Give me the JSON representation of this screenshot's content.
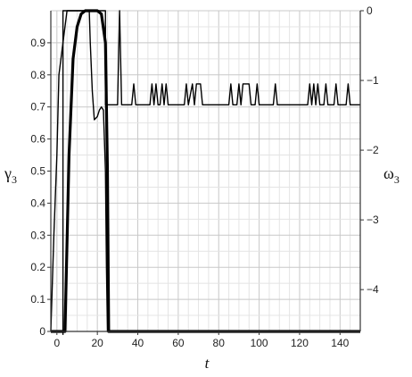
{
  "chart_data": {
    "type": "line",
    "xlabel": "t",
    "ylabel_left": {
      "symbol": "γ",
      "subscript": "3"
    },
    "ylabel_right": {
      "symbol": "ω",
      "subscript": "3"
    },
    "xlim": [
      -3,
      150
    ],
    "ylim_left": [
      0,
      1.0
    ],
    "ylim_right": [
      -4.6,
      0
    ],
    "x_ticks": [
      0,
      20,
      40,
      60,
      80,
      100,
      120,
      140
    ],
    "y_ticks_left": [
      0,
      0.1,
      0.2,
      0.3,
      0.4,
      0.5,
      0.6,
      0.7,
      0.8,
      0.9
    ],
    "y_ticks_right": [
      0,
      -1,
      -2,
      -3,
      -4
    ],
    "grid": true,
    "series": [
      {
        "axis": "left",
        "style": "thick",
        "points": [
          [
            -3,
            0
          ],
          [
            4,
            0
          ],
          [
            6,
            0.55
          ],
          [
            8,
            0.85
          ],
          [
            10,
            0.95
          ],
          [
            12,
            0.99
          ],
          [
            14,
            1.0
          ],
          [
            20,
            1.0
          ],
          [
            22,
            0.99
          ],
          [
            24,
            0.9
          ],
          [
            25,
            0.5
          ],
          [
            25.6,
            0.0
          ],
          [
            150,
            0.0
          ]
        ]
      },
      {
        "axis": "left",
        "style": "thin",
        "points": [
          [
            -3,
            0.0
          ],
          [
            -1.5,
            0.3
          ],
          [
            0,
            0.55
          ],
          [
            1,
            0.8
          ],
          [
            2,
            0.85
          ],
          [
            3,
            0.9
          ],
          [
            5,
            1.0
          ],
          [
            16,
            1.0
          ],
          [
            16.5,
            0.9
          ],
          [
            17.5,
            0.75
          ],
          [
            18.5,
            0.66
          ],
          [
            20,
            0.67
          ],
          [
            21,
            0.69
          ],
          [
            22,
            0.7
          ],
          [
            23,
            0.69
          ],
          [
            24,
            0.5
          ],
          [
            24.5,
            0.2
          ],
          [
            25,
            0.0
          ],
          [
            150,
            0.0
          ]
        ]
      },
      {
        "axis": "right",
        "style": "thin",
        "points": [
          [
            3,
            -4.65
          ],
          [
            3,
            0.0
          ],
          [
            24,
            0.0
          ],
          [
            24,
            -1.35
          ],
          [
            30,
            -1.35
          ],
          [
            31,
            0.0
          ],
          [
            32,
            -1.35
          ],
          [
            37,
            -1.35
          ],
          [
            38,
            -1.05
          ],
          [
            39,
            -1.35
          ],
          [
            46,
            -1.35
          ],
          [
            47,
            -1.05
          ],
          [
            48,
            -1.35
          ],
          [
            49,
            -1.05
          ],
          [
            50,
            -1.35
          ],
          [
            51,
            -1.35
          ],
          [
            52,
            -1.05
          ],
          [
            53,
            -1.35
          ],
          [
            54,
            -1.05
          ],
          [
            55,
            -1.35
          ],
          [
            63,
            -1.35
          ],
          [
            64,
            -1.05
          ],
          [
            65,
            -1.35
          ],
          [
            67,
            -1.05
          ],
          [
            68,
            -1.35
          ],
          [
            69,
            -1.05
          ],
          [
            71,
            -1.05
          ],
          [
            72,
            -1.35
          ],
          [
            85,
            -1.35
          ],
          [
            86,
            -1.05
          ],
          [
            87,
            -1.35
          ],
          [
            89,
            -1.35
          ],
          [
            90,
            -1.05
          ],
          [
            91,
            -1.35
          ],
          [
            92,
            -1.05
          ],
          [
            95,
            -1.05
          ],
          [
            96,
            -1.35
          ],
          [
            98,
            -1.35
          ],
          [
            99,
            -1.05
          ],
          [
            100,
            -1.35
          ],
          [
            107,
            -1.35
          ],
          [
            108,
            -1.05
          ],
          [
            109,
            -1.35
          ],
          [
            124,
            -1.35
          ],
          [
            125,
            -1.05
          ],
          [
            126,
            -1.35
          ],
          [
            127,
            -1.05
          ],
          [
            128,
            -1.35
          ],
          [
            129,
            -1.05
          ],
          [
            130,
            -1.35
          ],
          [
            132,
            -1.35
          ],
          [
            133,
            -1.05
          ],
          [
            134,
            -1.35
          ],
          [
            137,
            -1.35
          ],
          [
            138,
            -1.05
          ],
          [
            139,
            -1.35
          ],
          [
            143,
            -1.35
          ],
          [
            144,
            -1.05
          ],
          [
            145,
            -1.35
          ],
          [
            150,
            -1.35
          ]
        ]
      }
    ]
  }
}
